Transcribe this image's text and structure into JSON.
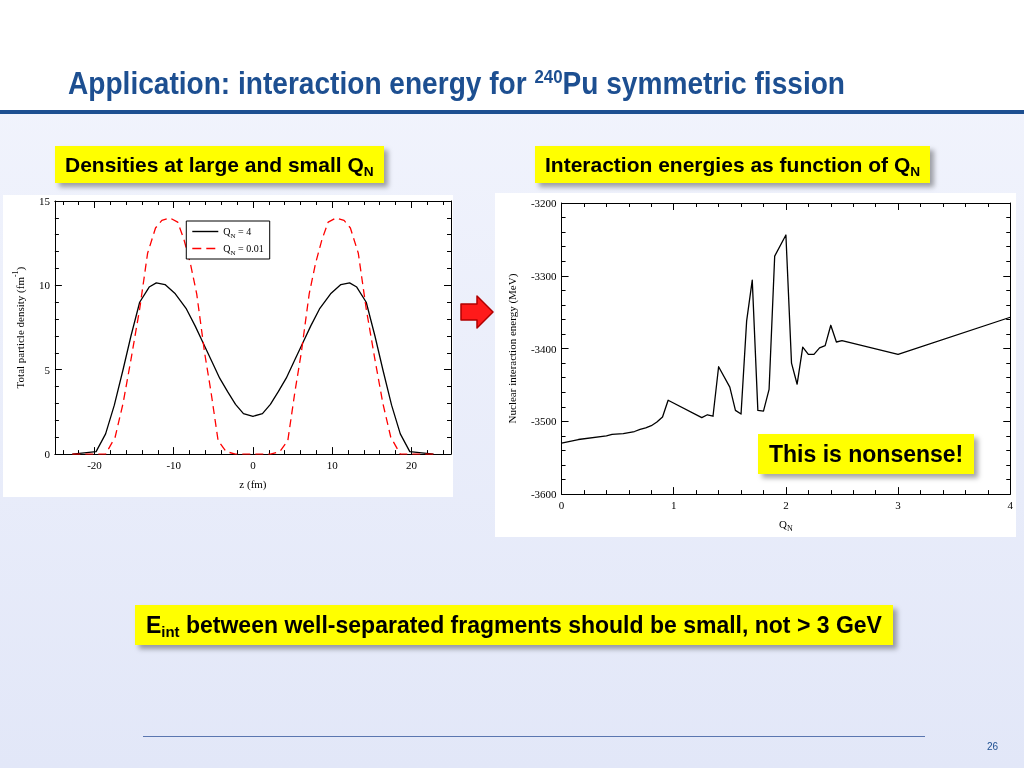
{
  "chart_data": [
    {
      "type": "line",
      "title": "Application: interaction energy for $^{240}$Pu symmetric fission",
      "subtitle": "Densities at large and small Q$_{N}$",
      "xlabel": "z (fm)",
      "ylabel": "Total particle density (fm$^{-1}$)",
      "series": [
        {
          "name": "Q$_{N}$ = 4",
          "color": "#000000",
          "line_style": "solid",
          "x": [
            -22.8,
            -19.8,
            -18.6,
            -17.5,
            -16.4,
            -15.4,
            -14.3,
            -13.1,
            -12.2,
            -11.1,
            -9.8,
            -8.4,
            -7.3,
            -6.3,
            -5.2,
            -4.2,
            -3.2,
            -2.2,
            -1.2,
            0,
            1.2,
            2.2,
            3.2,
            4.2,
            5.2,
            6.3,
            7.3,
            8.4,
            9.8,
            11.1,
            12.2,
            13.1,
            14.3,
            15.4,
            16.4,
            17.5,
            18.6,
            19.8,
            22.8
          ],
          "values": [
            0,
            0.15,
            1.2,
            2.9,
            5.0,
            7.0,
            9.0,
            9.9,
            10.15,
            10.05,
            9.5,
            8.6,
            7.6,
            6.6,
            5.5,
            4.5,
            3.7,
            2.95,
            2.4,
            2.24,
            2.4,
            2.95,
            3.7,
            4.5,
            5.5,
            6.6,
            7.6,
            8.6,
            9.5,
            10.05,
            10.15,
            9.9,
            9.0,
            7.0,
            5.0,
            2.9,
            1.2,
            0.15,
            0
          ]
        },
        {
          "name": "Q$_{N}$ = 0.01",
          "color": "#ff0000",
          "line_style": "dashed",
          "x": [
            -22.8,
            -18.6,
            -17.4,
            -16.4,
            -15.4,
            -14.3,
            -13.3,
            -12.3,
            -11.5,
            -10.5,
            -9.5,
            -8.7,
            -7.9,
            -7.1,
            -6.1,
            -5.3,
            -4.4,
            -3.4,
            -2.2,
            2.2,
            3.4,
            4.4,
            5.3,
            6.1,
            7.1,
            7.9,
            8.7,
            9.5,
            10.5,
            11.5,
            12.3,
            13.3,
            14.3,
            15.4,
            16.4,
            17.4,
            18.6,
            22.8
          ],
          "values": [
            0,
            0,
            1.0,
            3.0,
            5.6,
            8.6,
            11.9,
            13.4,
            13.85,
            14.0,
            13.75,
            12.7,
            11.3,
            9.5,
            6.0,
            3.7,
            0.8,
            0.15,
            0,
            0,
            0.15,
            0.8,
            3.7,
            6.0,
            9.5,
            11.3,
            12.7,
            13.75,
            14.0,
            13.85,
            13.4,
            11.9,
            8.6,
            5.6,
            3.0,
            1.0,
            0,
            0
          ]
        }
      ],
      "xlim": [
        -25,
        25
      ],
      "ylim": [
        0,
        15
      ],
      "xticks": [
        {
          "value": -24,
          "label": null
        },
        {
          "value": -22,
          "label": null
        },
        -20,
        {
          "value": -18,
          "label": null
        },
        {
          "value": -16,
          "label": null
        },
        {
          "value": -14,
          "label": null
        },
        {
          "value": -12,
          "label": null
        },
        -10,
        {
          "value": -8,
          "label": null
        },
        {
          "value": -6,
          "label": null
        },
        {
          "value": -4,
          "label": null
        },
        {
          "value": -2,
          "label": null
        },
        0,
        {
          "value": 2,
          "label": null
        },
        {
          "value": 4,
          "label": null
        },
        {
          "value": 6,
          "label": null
        },
        {
          "value": 8,
          "label": null
        },
        10,
        {
          "value": 12,
          "label": null
        },
        {
          "value": 14,
          "label": null
        },
        {
          "value": 16,
          "label": null
        },
        {
          "value": 18,
          "label": null
        },
        20,
        {
          "value": 22,
          "label": null
        },
        {
          "value": 24,
          "label": null
        }
      ],
      "yticks": [
        0,
        {
          "value": 1,
          "label": null
        },
        {
          "value": 2,
          "label": null
        },
        {
          "value": 3,
          "label": null
        },
        {
          "value": 4,
          "label": null
        },
        5,
        {
          "value": 6,
          "label": null
        },
        {
          "value": 7,
          "label": null
        },
        {
          "value": 8,
          "label": null
        },
        {
          "value": 9,
          "label": null
        },
        10,
        {
          "value": 11,
          "label": null
        },
        {
          "value": 12,
          "label": null
        },
        {
          "value": 13,
          "label": null
        },
        {
          "value": 14,
          "label": null
        },
        15
      ],
      "grid": false,
      "legend": "top",
      "marker": "none",
      "annotations": [
        "E$_{int}$ between well-separated fragments should be small, not > 3 GeV",
        "26"
      ]
    },
    {
      "type": "line",
      "title": "Interaction energies as function of Q$_{N}$",
      "xlabel": "Q$_{N}$",
      "ylabel": "Nuclear interaction energy (MeV)",
      "x": [
        0,
        0.15,
        0.4,
        0.45,
        0.55,
        0.65,
        0.7,
        0.75,
        0.8,
        0.85,
        0.9,
        0.95,
        1.25,
        1.3,
        1.35,
        1.4,
        1.5,
        1.55,
        1.6,
        1.65,
        1.7,
        1.75,
        1.8,
        1.85,
        1.9,
        2.0,
        2.05,
        2.1,
        2.15,
        2.2,
        2.25,
        2.3,
        2.35,
        2.4,
        2.45,
        2.5,
        3.0,
        4.0
      ],
      "values": [
        -3530,
        -3525,
        -3520,
        -3518,
        -3517,
        -3514,
        -3511,
        -3509,
        -3506,
        -3501,
        -3494,
        -3471,
        -3495,
        -3491,
        -3493,
        -3425,
        -3453,
        -3485,
        -3490,
        -3362,
        -3306,
        -3485,
        -3486,
        -3456,
        -3273,
        -3244,
        -3420,
        -3449,
        -3398,
        -3408,
        -3408,
        -3399,
        -3396,
        -3368,
        -3391,
        -3389,
        -3408,
        -3357
      ],
      "color": "#000000",
      "line_style": "solid",
      "marker": "none",
      "xlim": [
        0,
        4
      ],
      "ylim": [
        -3600,
        -3200
      ],
      "xticks": [
        0,
        {
          "value": 0.2,
          "label": null
        },
        {
          "value": 0.4,
          "label": null
        },
        {
          "value": 0.6,
          "label": null
        },
        {
          "value": 0.8,
          "label": null
        },
        1,
        {
          "value": 1.2,
          "label": null
        },
        {
          "value": 1.4,
          "label": null
        },
        {
          "value": 1.6,
          "label": null
        },
        {
          "value": 1.8,
          "label": null
        },
        2,
        {
          "value": 2.2,
          "label": null
        },
        {
          "value": 2.4,
          "label": null
        },
        {
          "value": 2.6,
          "label": null
        },
        {
          "value": 2.8,
          "label": null
        },
        3,
        {
          "value": 3.2,
          "label": null
        },
        {
          "value": 3.4,
          "label": null
        },
        {
          "value": 3.6,
          "label": null
        },
        {
          "value": 3.8,
          "label": null
        },
        4
      ],
      "yticks": [
        -3600,
        {
          "value": -3580,
          "label": null
        },
        {
          "value": -3560,
          "label": null
        },
        {
          "value": -3540,
          "label": null
        },
        {
          "value": -3520,
          "label": null
        },
        -3500,
        {
          "value": -3480,
          "label": null
        },
        {
          "value": -3460,
          "label": null
        },
        {
          "value": -3440,
          "label": null
        },
        {
          "value": -3420,
          "label": null
        },
        -3400,
        {
          "value": -3380,
          "label": null
        },
        {
          "value": -3360,
          "label": null
        },
        {
          "value": -3340,
          "label": null
        },
        {
          "value": -3320,
          "label": null
        },
        -3300,
        {
          "value": -3280,
          "label": null
        },
        {
          "value": -3260,
          "label": null
        },
        {
          "value": -3240,
          "label": null
        },
        {
          "value": -3220,
          "label": null
        },
        -3200
      ],
      "grid": false,
      "annotations": [
        "This is nonsense!"
      ]
    }
  ]
}
